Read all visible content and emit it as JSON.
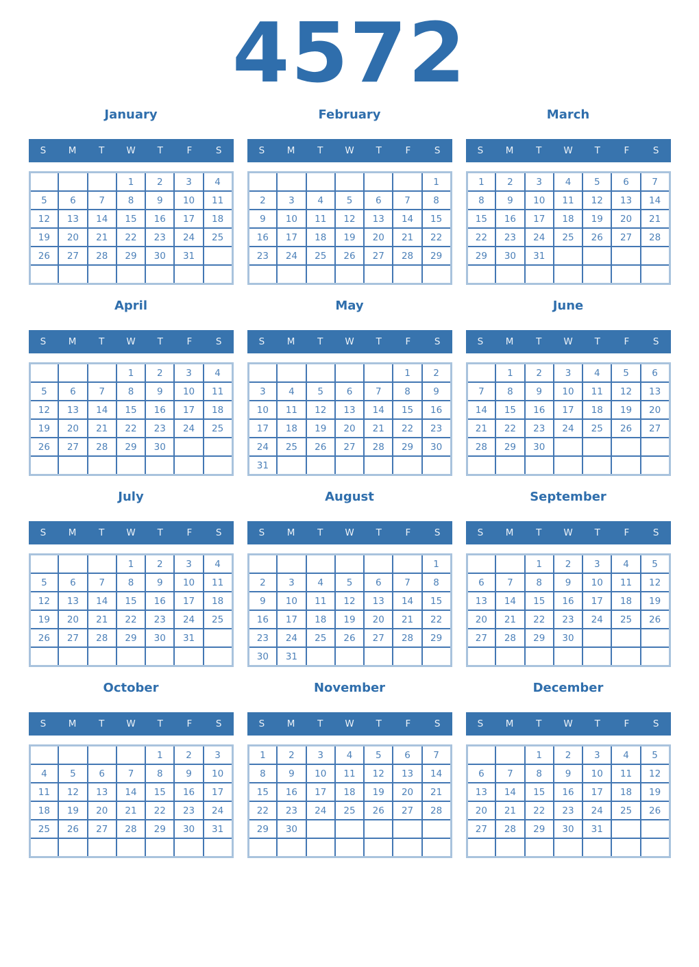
{
  "year": "4572",
  "colors": {
    "title": "#2F6EAC",
    "header_bg": "#3874AE",
    "header_text": "#ECF2F8",
    "date_text": "#4C80B8",
    "inner_border": "#4377B3",
    "outer_border": "#A9C3DD",
    "page_bg": "#FFFFFF"
  },
  "day_headers": [
    "S",
    "M",
    "T",
    "W",
    "T",
    "F",
    "S"
  ],
  "months": [
    {
      "name": "January",
      "weeks": [
        [
          "",
          "",
          "",
          "1",
          "2",
          "3",
          "4"
        ],
        [
          "5",
          "6",
          "7",
          "8",
          "9",
          "10",
          "11"
        ],
        [
          "12",
          "13",
          "14",
          "15",
          "16",
          "17",
          "18"
        ],
        [
          "19",
          "20",
          "21",
          "22",
          "23",
          "24",
          "25"
        ],
        [
          "26",
          "27",
          "28",
          "29",
          "30",
          "31",
          ""
        ],
        [
          "",
          "",
          "",
          "",
          "",
          "",
          ""
        ]
      ]
    },
    {
      "name": "February",
      "weeks": [
        [
          "",
          "",
          "",
          "",
          "",
          "",
          "1"
        ],
        [
          "2",
          "3",
          "4",
          "5",
          "6",
          "7",
          "8"
        ],
        [
          "9",
          "10",
          "11",
          "12",
          "13",
          "14",
          "15"
        ],
        [
          "16",
          "17",
          "18",
          "19",
          "20",
          "21",
          "22"
        ],
        [
          "23",
          "24",
          "25",
          "26",
          "27",
          "28",
          "29"
        ],
        [
          "",
          "",
          "",
          "",
          "",
          "",
          ""
        ]
      ]
    },
    {
      "name": "March",
      "weeks": [
        [
          "1",
          "2",
          "3",
          "4",
          "5",
          "6",
          "7"
        ],
        [
          "8",
          "9",
          "10",
          "11",
          "12",
          "13",
          "14"
        ],
        [
          "15",
          "16",
          "17",
          "18",
          "19",
          "20",
          "21"
        ],
        [
          "22",
          "23",
          "24",
          "25",
          "26",
          "27",
          "28"
        ],
        [
          "29",
          "30",
          "31",
          "",
          "",
          "",
          ""
        ],
        [
          "",
          "",
          "",
          "",
          "",
          "",
          ""
        ]
      ]
    },
    {
      "name": "April",
      "weeks": [
        [
          "",
          "",
          "",
          "1",
          "2",
          "3",
          "4"
        ],
        [
          "5",
          "6",
          "7",
          "8",
          "9",
          "10",
          "11"
        ],
        [
          "12",
          "13",
          "14",
          "15",
          "16",
          "17",
          "18"
        ],
        [
          "19",
          "20",
          "21",
          "22",
          "23",
          "24",
          "25"
        ],
        [
          "26",
          "27",
          "28",
          "29",
          "30",
          "",
          ""
        ],
        [
          "",
          "",
          "",
          "",
          "",
          "",
          ""
        ]
      ]
    },
    {
      "name": "May",
      "weeks": [
        [
          "",
          "",
          "",
          "",
          "",
          "1",
          "2"
        ],
        [
          "3",
          "4",
          "5",
          "6",
          "7",
          "8",
          "9"
        ],
        [
          "10",
          "11",
          "12",
          "13",
          "14",
          "15",
          "16"
        ],
        [
          "17",
          "18",
          "19",
          "20",
          "21",
          "22",
          "23"
        ],
        [
          "24",
          "25",
          "26",
          "27",
          "28",
          "29",
          "30"
        ],
        [
          "31",
          "",
          "",
          "",
          "",
          "",
          ""
        ]
      ]
    },
    {
      "name": "June",
      "weeks": [
        [
          "",
          "1",
          "2",
          "3",
          "4",
          "5",
          "6"
        ],
        [
          "7",
          "8",
          "9",
          "10",
          "11",
          "12",
          "13"
        ],
        [
          "14",
          "15",
          "16",
          "17",
          "18",
          "19",
          "20"
        ],
        [
          "21",
          "22",
          "23",
          "24",
          "25",
          "26",
          "27"
        ],
        [
          "28",
          "29",
          "30",
          "",
          "",
          "",
          ""
        ],
        [
          "",
          "",
          "",
          "",
          "",
          "",
          ""
        ]
      ]
    },
    {
      "name": "July",
      "weeks": [
        [
          "",
          "",
          "",
          "1",
          "2",
          "3",
          "4"
        ],
        [
          "5",
          "6",
          "7",
          "8",
          "9",
          "10",
          "11"
        ],
        [
          "12",
          "13",
          "14",
          "15",
          "16",
          "17",
          "18"
        ],
        [
          "19",
          "20",
          "21",
          "22",
          "23",
          "24",
          "25"
        ],
        [
          "26",
          "27",
          "28",
          "29",
          "30",
          "31",
          ""
        ],
        [
          "",
          "",
          "",
          "",
          "",
          "",
          ""
        ]
      ]
    },
    {
      "name": "August",
      "weeks": [
        [
          "",
          "",
          "",
          "",
          "",
          "",
          "1"
        ],
        [
          "2",
          "3",
          "4",
          "5",
          "6",
          "7",
          "8"
        ],
        [
          "9",
          "10",
          "11",
          "12",
          "13",
          "14",
          "15"
        ],
        [
          "16",
          "17",
          "18",
          "19",
          "20",
          "21",
          "22"
        ],
        [
          "23",
          "24",
          "25",
          "26",
          "27",
          "28",
          "29"
        ],
        [
          "30",
          "31",
          "",
          "",
          "",
          "",
          ""
        ]
      ]
    },
    {
      "name": "September",
      "weeks": [
        [
          "",
          "",
          "1",
          "2",
          "3",
          "4",
          "5"
        ],
        [
          "6",
          "7",
          "8",
          "9",
          "10",
          "11",
          "12"
        ],
        [
          "13",
          "14",
          "15",
          "16",
          "17",
          "18",
          "19"
        ],
        [
          "20",
          "21",
          "22",
          "23",
          "24",
          "25",
          "26"
        ],
        [
          "27",
          "28",
          "29",
          "30",
          "",
          "",
          ""
        ],
        [
          "",
          "",
          "",
          "",
          "",
          "",
          ""
        ]
      ]
    },
    {
      "name": "October",
      "weeks": [
        [
          "",
          "",
          "",
          "",
          "1",
          "2",
          "3"
        ],
        [
          "4",
          "5",
          "6",
          "7",
          "8",
          "9",
          "10"
        ],
        [
          "11",
          "12",
          "13",
          "14",
          "15",
          "16",
          "17"
        ],
        [
          "18",
          "19",
          "20",
          "21",
          "22",
          "23",
          "24"
        ],
        [
          "25",
          "26",
          "27",
          "28",
          "29",
          "30",
          "31"
        ],
        [
          "",
          "",
          "",
          "",
          "",
          "",
          ""
        ]
      ]
    },
    {
      "name": "November",
      "weeks": [
        [
          "1",
          "2",
          "3",
          "4",
          "5",
          "6",
          "7"
        ],
        [
          "8",
          "9",
          "10",
          "11",
          "12",
          "13",
          "14"
        ],
        [
          "15",
          "16",
          "17",
          "18",
          "19",
          "20",
          "21"
        ],
        [
          "22",
          "23",
          "24",
          "25",
          "26",
          "27",
          "28"
        ],
        [
          "29",
          "30",
          "",
          "",
          "",
          "",
          ""
        ],
        [
          "",
          "",
          "",
          "",
          "",
          "",
          ""
        ]
      ]
    },
    {
      "name": "December",
      "weeks": [
        [
          "",
          "",
          "1",
          "2",
          "3",
          "4",
          "5"
        ],
        [
          "6",
          "7",
          "8",
          "9",
          "10",
          "11",
          "12"
        ],
        [
          "13",
          "14",
          "15",
          "16",
          "17",
          "18",
          "19"
        ],
        [
          "20",
          "21",
          "22",
          "23",
          "24",
          "25",
          "26"
        ],
        [
          "27",
          "28",
          "29",
          "30",
          "31",
          "",
          ""
        ],
        [
          "",
          "",
          "",
          "",
          "",
          "",
          ""
        ]
      ]
    }
  ]
}
